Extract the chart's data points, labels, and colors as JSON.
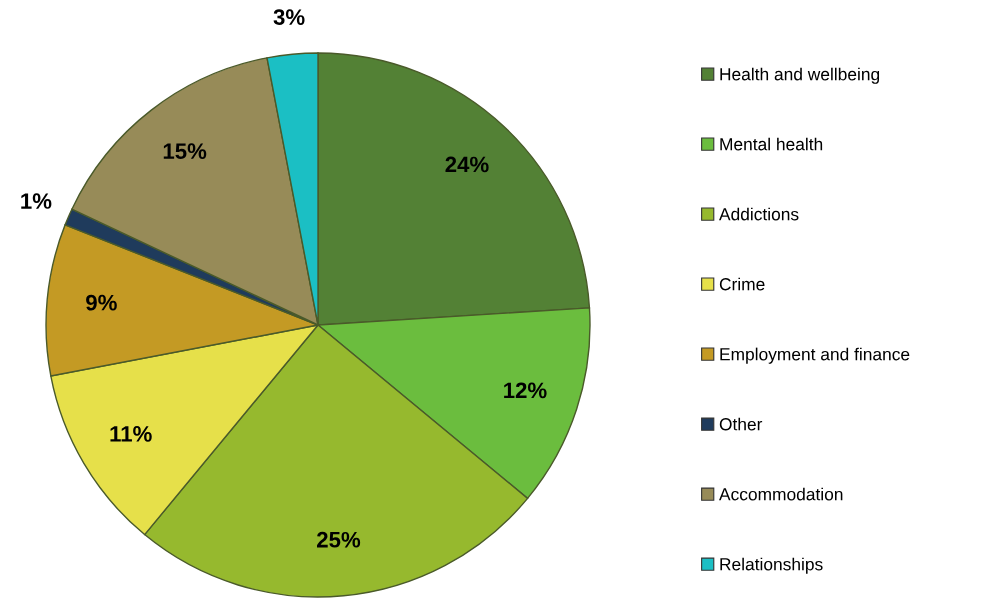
{
  "chart_data": {
    "type": "pie",
    "categories": [
      "Health and wellbeing",
      "Mental health",
      "Addictions",
      "Crime",
      "Employment and finance",
      "Other",
      "Accommodation",
      "Relationships"
    ],
    "values": [
      24,
      12,
      25,
      11,
      9,
      1,
      15,
      3
    ],
    "colors": [
      "#538135",
      "#6bbd3e",
      "#96b92e",
      "#e6e04a",
      "#c49a24",
      "#1f3b5c",
      "#978b58",
      "#1bbfc4"
    ],
    "value_labels": [
      "24%",
      "12%",
      "25%",
      "11%",
      "9%",
      "1%",
      "15%",
      "3%"
    ],
    "legend": "right"
  }
}
